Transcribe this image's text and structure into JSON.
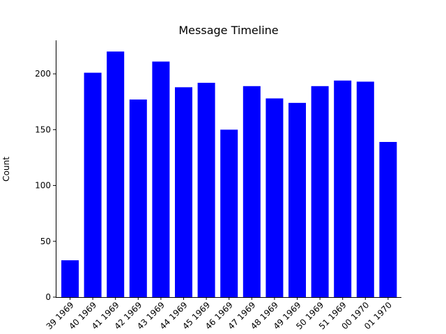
{
  "chart_data": {
    "type": "bar",
    "title": "Message Timeline",
    "xlabel": "",
    "ylabel": "Count",
    "ylim": [
      0,
      230
    ],
    "yticks": [
      0,
      50,
      100,
      150,
      200
    ],
    "grid": false,
    "bar_color": "#0000ff",
    "categories": [
      "39 1969",
      "40 1969",
      "41 1969",
      "42 1969",
      "43 1969",
      "44 1969",
      "45 1969",
      "46 1969",
      "47 1969",
      "48 1969",
      "49 1969",
      "50 1969",
      "51 1969",
      "00 1970",
      "01 1970"
    ],
    "values": [
      33,
      201,
      220,
      177,
      211,
      188,
      192,
      150,
      189,
      178,
      174,
      189,
      194,
      193,
      139
    ]
  }
}
